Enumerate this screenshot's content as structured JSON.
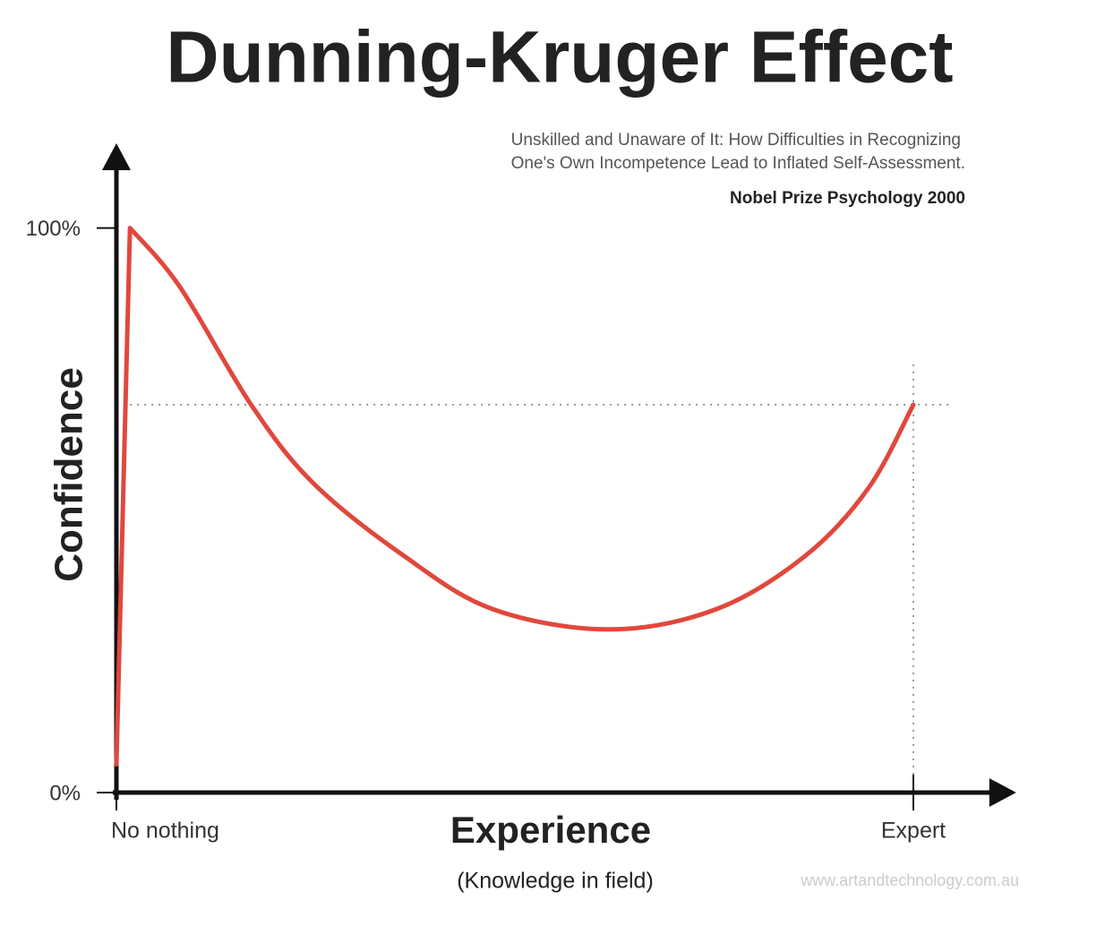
{
  "chart_data": {
    "type": "line",
    "title": "Dunning-Kruger Effect",
    "subtitle": [
      "Unskilled and Unaware of It: How Difficulties in Recognizing",
      "One's Own Incompetence Lead to Inflated Self-Assessment."
    ],
    "source_note": "Nobel Prize Psychology  2000",
    "y_label": "Confidence",
    "x_label": "Experience",
    "x_sublabel": "(Knowledge in field)",
    "watermark": "www.artandtechnology.com.au",
    "x": [
      0,
      1.7,
      7.9,
      16.9,
      24.7,
      36,
      47.2,
      61.8,
      75.3,
      86.5,
      94.4,
      100
    ],
    "series": [
      {
        "color": "#e0483c",
        "values": [
          5,
          100,
          89.7,
          68.7,
          54.8,
          42,
          32.5,
          28.9,
          32.5,
          42,
          54,
          68.7
        ]
      }
    ],
    "xlim": [
      0,
      112
    ],
    "ylim": [
      0,
      115
    ],
    "xticks": [
      {
        "value": 0,
        "label": "No nothing"
      },
      {
        "value": 100,
        "label": "Expert"
      }
    ],
    "yticks": [
      {
        "value": 0,
        "label": "0%"
      },
      {
        "value": 100,
        "label": "100%"
      }
    ]
  }
}
